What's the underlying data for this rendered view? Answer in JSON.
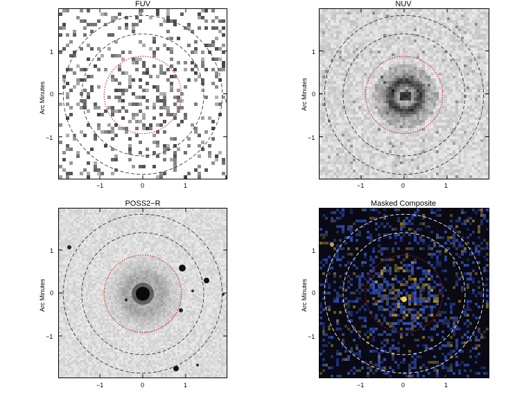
{
  "figure": {
    "y_axis_label": "Arc Minutes",
    "x_ticks": [
      "−1",
      "0",
      "1"
    ],
    "y_ticks": [
      "1",
      "0",
      "−1"
    ]
  },
  "panels": [
    {
      "id": "fuv",
      "title": "FUV",
      "style": "grayscale-sparse",
      "ring_colors": {
        "inner": "#d62020",
        "outer": "#333333"
      }
    },
    {
      "id": "nuv",
      "title": "NUV",
      "style": "grayscale-galaxy",
      "ring_colors": {
        "inner": "#d62020",
        "outer": "#333333"
      }
    },
    {
      "id": "poss2r",
      "title": "POSS2−R",
      "style": "grayscale-optical",
      "ring_colors": {
        "inner": "#d62020",
        "outer": "#333333"
      }
    },
    {
      "id": "composite",
      "title": "Masked Composite",
      "style": "color-composite",
      "ring_colors": {
        "inner": "#a52020",
        "outer": "#ffffff"
      },
      "colors": {
        "background": "#0a0a14",
        "blue": "#3a5bd6",
        "yellow": "#d4b23a"
      }
    }
  ]
}
